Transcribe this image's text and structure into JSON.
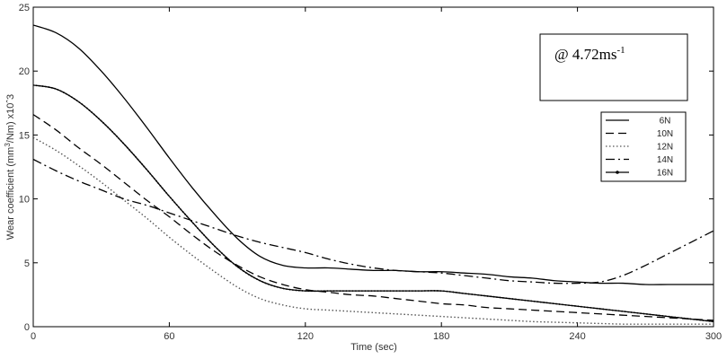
{
  "chart_data": {
    "type": "line",
    "xlabel": "Time (sec)",
    "ylabel_parts": {
      "before": "Wear coefficient (mm",
      "sup": "3",
      "after": "/Nm) x10ˆ3"
    },
    "xlim": [
      0,
      300
    ],
    "ylim": [
      0,
      25
    ],
    "xticks": [
      "0",
      "60",
      "120",
      "180",
      "240",
      "300"
    ],
    "yticks": [
      "0",
      "5",
      "10",
      "15",
      "20",
      "25"
    ],
    "grid": false,
    "legend_position": "right",
    "annotation": {
      "main": "@ 4.72ms",
      "sup": "-1"
    },
    "series": [
      {
        "name": "6N",
        "style": "solid",
        "color": "#000000",
        "x": [
          0,
          10,
          20,
          30,
          40,
          50,
          60,
          70,
          80,
          90,
          100,
          110,
          120,
          130,
          140,
          150,
          160,
          170,
          180,
          190,
          200,
          210,
          220,
          230,
          240,
          250,
          260,
          270,
          280,
          290,
          300
        ],
        "y": [
          23.6,
          23.0,
          21.8,
          20.0,
          17.9,
          15.6,
          13.2,
          10.9,
          8.8,
          6.9,
          5.5,
          4.8,
          4.6,
          4.6,
          4.5,
          4.4,
          4.4,
          4.3,
          4.3,
          4.2,
          4.1,
          3.9,
          3.8,
          3.6,
          3.5,
          3.4,
          3.4,
          3.3,
          3.3,
          3.3,
          3.3
        ]
      },
      {
        "name": "10N",
        "style": "dashed",
        "color": "#000000",
        "x": [
          0,
          10,
          20,
          30,
          40,
          50,
          60,
          70,
          80,
          90,
          100,
          110,
          120,
          130,
          140,
          150,
          160,
          170,
          180,
          190,
          200,
          210,
          220,
          230,
          240,
          250,
          260,
          270,
          280,
          290,
          300
        ],
        "y": [
          16.6,
          15.4,
          14.0,
          12.7,
          11.3,
          9.9,
          8.6,
          7.2,
          5.9,
          4.8,
          3.9,
          3.3,
          2.9,
          2.7,
          2.5,
          2.4,
          2.2,
          2.0,
          1.8,
          1.7,
          1.5,
          1.4,
          1.3,
          1.2,
          1.1,
          1.0,
          0.9,
          0.8,
          0.7,
          0.6,
          0.5
        ]
      },
      {
        "name": "12N",
        "style": "dotted",
        "color": "#555555",
        "x": [
          0,
          10,
          20,
          30,
          40,
          50,
          60,
          70,
          80,
          90,
          100,
          110,
          120,
          130,
          140,
          150,
          160,
          170,
          180,
          190,
          200,
          210,
          220,
          230,
          240,
          250,
          260,
          270,
          280,
          290,
          300
        ],
        "y": [
          14.8,
          13.8,
          12.6,
          11.3,
          9.9,
          8.5,
          7.0,
          5.6,
          4.3,
          3.1,
          2.2,
          1.7,
          1.4,
          1.3,
          1.2,
          1.1,
          1.0,
          0.9,
          0.8,
          0.7,
          0.6,
          0.5,
          0.4,
          0.35,
          0.3,
          0.25,
          0.2,
          0.2,
          0.2,
          0.2,
          0.2
        ]
      },
      {
        "name": "14N",
        "style": "dashdot",
        "color": "#000000",
        "x": [
          0,
          10,
          20,
          30,
          40,
          50,
          60,
          70,
          80,
          90,
          100,
          110,
          120,
          130,
          140,
          150,
          160,
          170,
          180,
          190,
          200,
          210,
          220,
          230,
          240,
          250,
          260,
          270,
          280,
          290,
          300
        ],
        "y": [
          13.1,
          12.2,
          11.4,
          10.7,
          10.0,
          9.5,
          8.9,
          8.3,
          7.7,
          7.1,
          6.6,
          6.2,
          5.8,
          5.3,
          4.9,
          4.6,
          4.4,
          4.3,
          4.2,
          4.0,
          3.8,
          3.6,
          3.5,
          3.4,
          3.4,
          3.5,
          4.0,
          4.8,
          5.7,
          6.6,
          7.5
        ]
      },
      {
        "name": "16N",
        "style": "solid-marker",
        "color": "#000000",
        "x": [
          0,
          10,
          20,
          30,
          40,
          50,
          60,
          70,
          80,
          90,
          100,
          110,
          120,
          130,
          140,
          150,
          160,
          170,
          180,
          190,
          200,
          210,
          220,
          230,
          240,
          250,
          260,
          270,
          280,
          290,
          300
        ],
        "y": [
          18.9,
          18.6,
          17.6,
          16.1,
          14.3,
          12.3,
          10.2,
          8.2,
          6.3,
          4.7,
          3.6,
          3.0,
          2.8,
          2.8,
          2.8,
          2.8,
          2.8,
          2.8,
          2.8,
          2.6,
          2.4,
          2.2,
          2.0,
          1.8,
          1.6,
          1.4,
          1.2,
          1.0,
          0.8,
          0.6,
          0.4
        ]
      }
    ]
  }
}
